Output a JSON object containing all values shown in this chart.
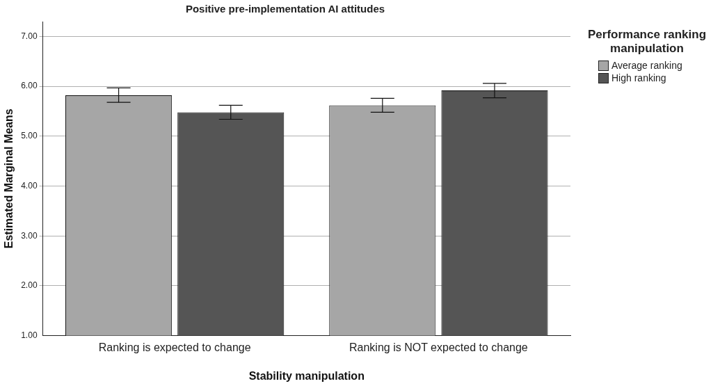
{
  "chart_data": {
    "type": "bar",
    "title": "Positive pre-implementation AI attitudes",
    "xlabel": "Stability manipulation",
    "ylabel": "Estimated Marginal Means",
    "legend_title": "Performance ranking manipulation",
    "categories": [
      "Ranking is expected to change",
      "Ranking is NOT expected to change"
    ],
    "series": [
      {
        "name": "Average ranking",
        "color": "#a6a6a6",
        "values": [
          5.82,
          5.62
        ],
        "errors": [
          [
            5.68,
            5.97
          ],
          [
            5.48,
            5.76
          ]
        ]
      },
      {
        "name": "High ranking",
        "color": "#555555",
        "values": [
          5.48,
          5.92
        ],
        "errors": [
          [
            5.34,
            5.62
          ],
          [
            5.77,
            6.06
          ]
        ]
      }
    ],
    "ylim": [
      1,
      7.3
    ],
    "yticks": [
      {
        "value": 1,
        "label": "1.00"
      },
      {
        "value": 2,
        "label": "2.00"
      },
      {
        "value": 3,
        "label": "3.00"
      },
      {
        "value": 4,
        "label": "4.00"
      },
      {
        "value": 5,
        "label": "5.00"
      },
      {
        "value": 6,
        "label": "6.00"
      },
      {
        "value": 7,
        "label": "7.00"
      }
    ],
    "grid": "y",
    "legend": "top right"
  }
}
